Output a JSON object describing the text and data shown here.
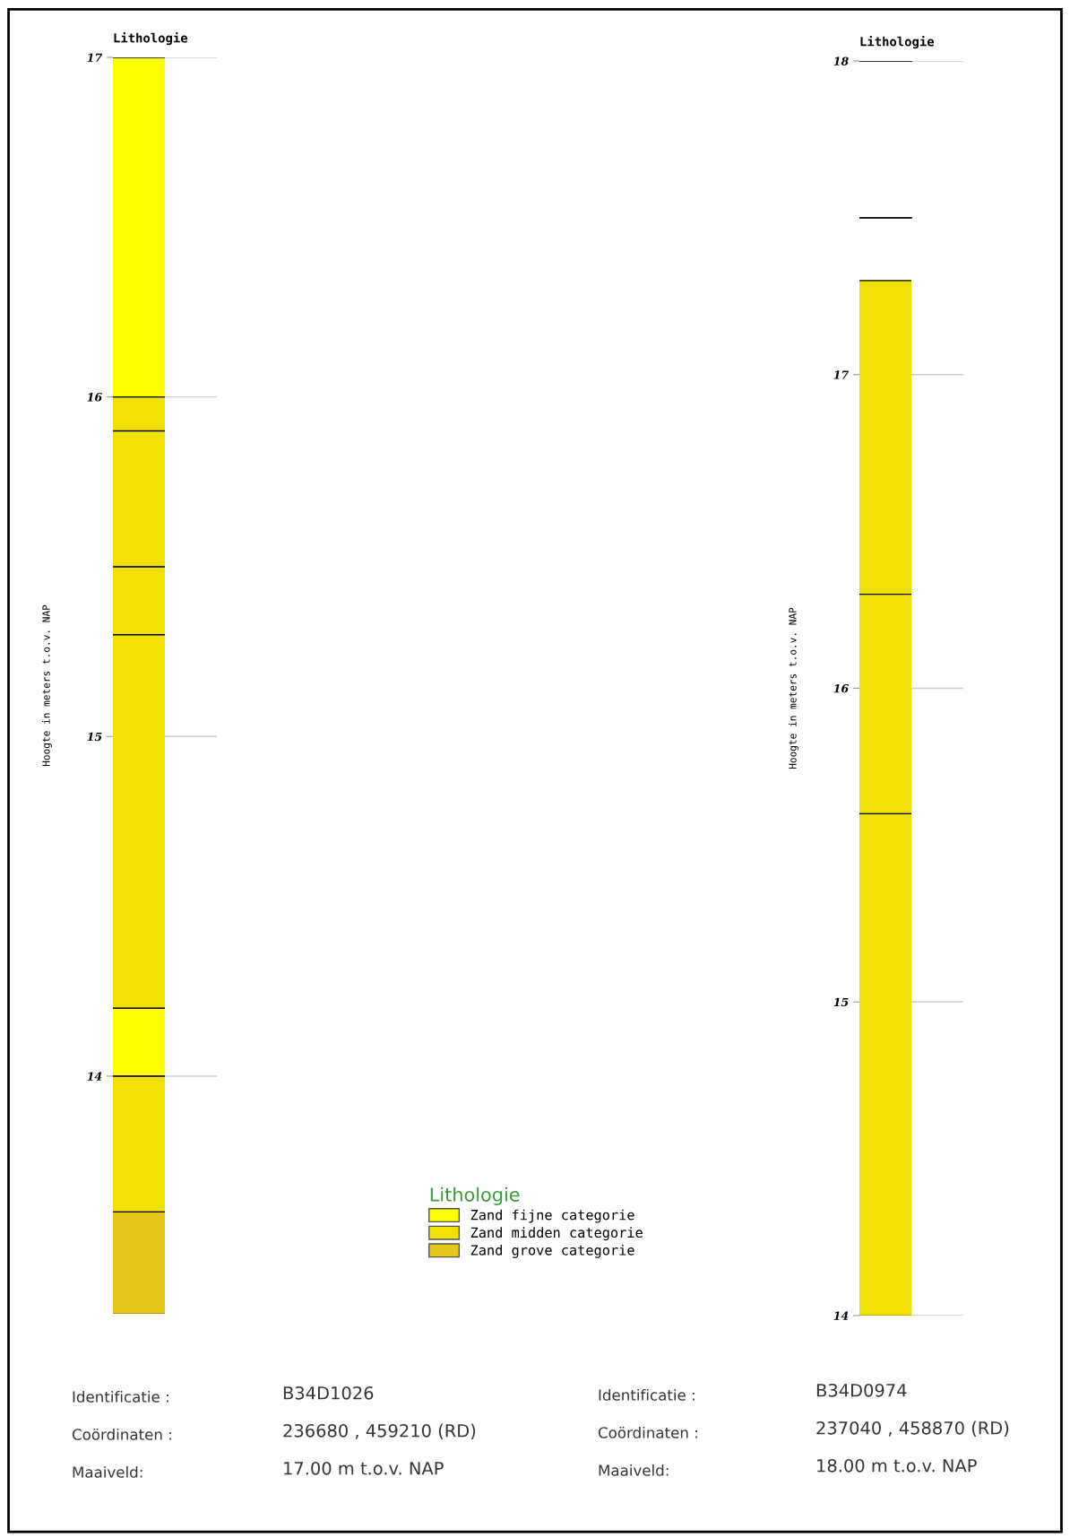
{
  "chart_data": [
    {
      "type": "bar",
      "title": "Lithologie",
      "ylabel": "Hoogte in meters t.o.v. NAP",
      "categories": [
        null
      ],
      "ylim": [
        13.3,
        17
      ],
      "yticks": [
        14,
        15,
        16,
        17
      ],
      "grid": "y",
      "tick_labels": "y",
      "legend": "bottom right",
      "legend_title": "Lithologie",
      "series": [
        {
          "name": "Zand fijne categorie",
          "color": "#ffff00",
          "base": [
            16.0
          ],
          "values": [
            1.0
          ]
        },
        {
          "name": "Zand midden categorie",
          "color": "#f2e005",
          "base": [
            15.9
          ],
          "values": [
            0.1
          ]
        },
        {
          "color": "#f2e005",
          "base": [
            15.5
          ],
          "values": [
            0.4
          ]
        },
        {
          "color": "#f2e005",
          "base": [
            15.3
          ],
          "values": [
            0.2
          ]
        },
        {
          "color": "#f2e005",
          "base": [
            14.2
          ],
          "values": [
            1.1
          ]
        },
        {
          "color": "#ffff00",
          "base": [
            14.0
          ],
          "values": [
            0.2
          ]
        },
        {
          "color": "#f2e005",
          "base": [
            13.6
          ],
          "values": [
            0.4
          ]
        },
        {
          "name": "Zand grove categorie",
          "color": "#e6c619",
          "base": [
            13.3
          ],
          "values": [
            0.3
          ]
        }
      ],
      "annotations": [
        "Identificatie :",
        "B34D1026",
        "Coördinaten :",
        "236680 , 459210 (RD)",
        "Maaiveld:",
        "17.00 m t.o.v. NAP"
      ]
    },
    {
      "type": "bar",
      "title": "Lithologie",
      "ylabel": "Hoogte in meters t.o.v. NAP",
      "categories": [
        null
      ],
      "ylim": [
        14,
        18
      ],
      "yticks": [
        14,
        15,
        16,
        17,
        18
      ],
      "grid": "y",
      "tick_labels": "y",
      "series": [
        {
          "color": "#f2e005",
          "base": [
            16.3
          ],
          "values": [
            1.0
          ]
        },
        {
          "color": "#f2e005",
          "base": [
            15.6
          ],
          "values": [
            0.7
          ]
        },
        {
          "color": "#f2e005",
          "base": [
            14.0
          ],
          "values": [
            1.6
          ]
        }
      ],
      "ref_lines": [
        {
          "axis": "y",
          "value": 18.0,
          "color": "#000000"
        },
        {
          "axis": "y",
          "value": 17.5,
          "color": "#000000"
        }
      ],
      "annotations": [
        "Identificatie :",
        "B34D0974",
        "Coördinaten :",
        "237040 , 458870 (RD)",
        "Maaiveld:",
        "18.00 m t.o.v. NAP"
      ]
    }
  ]
}
